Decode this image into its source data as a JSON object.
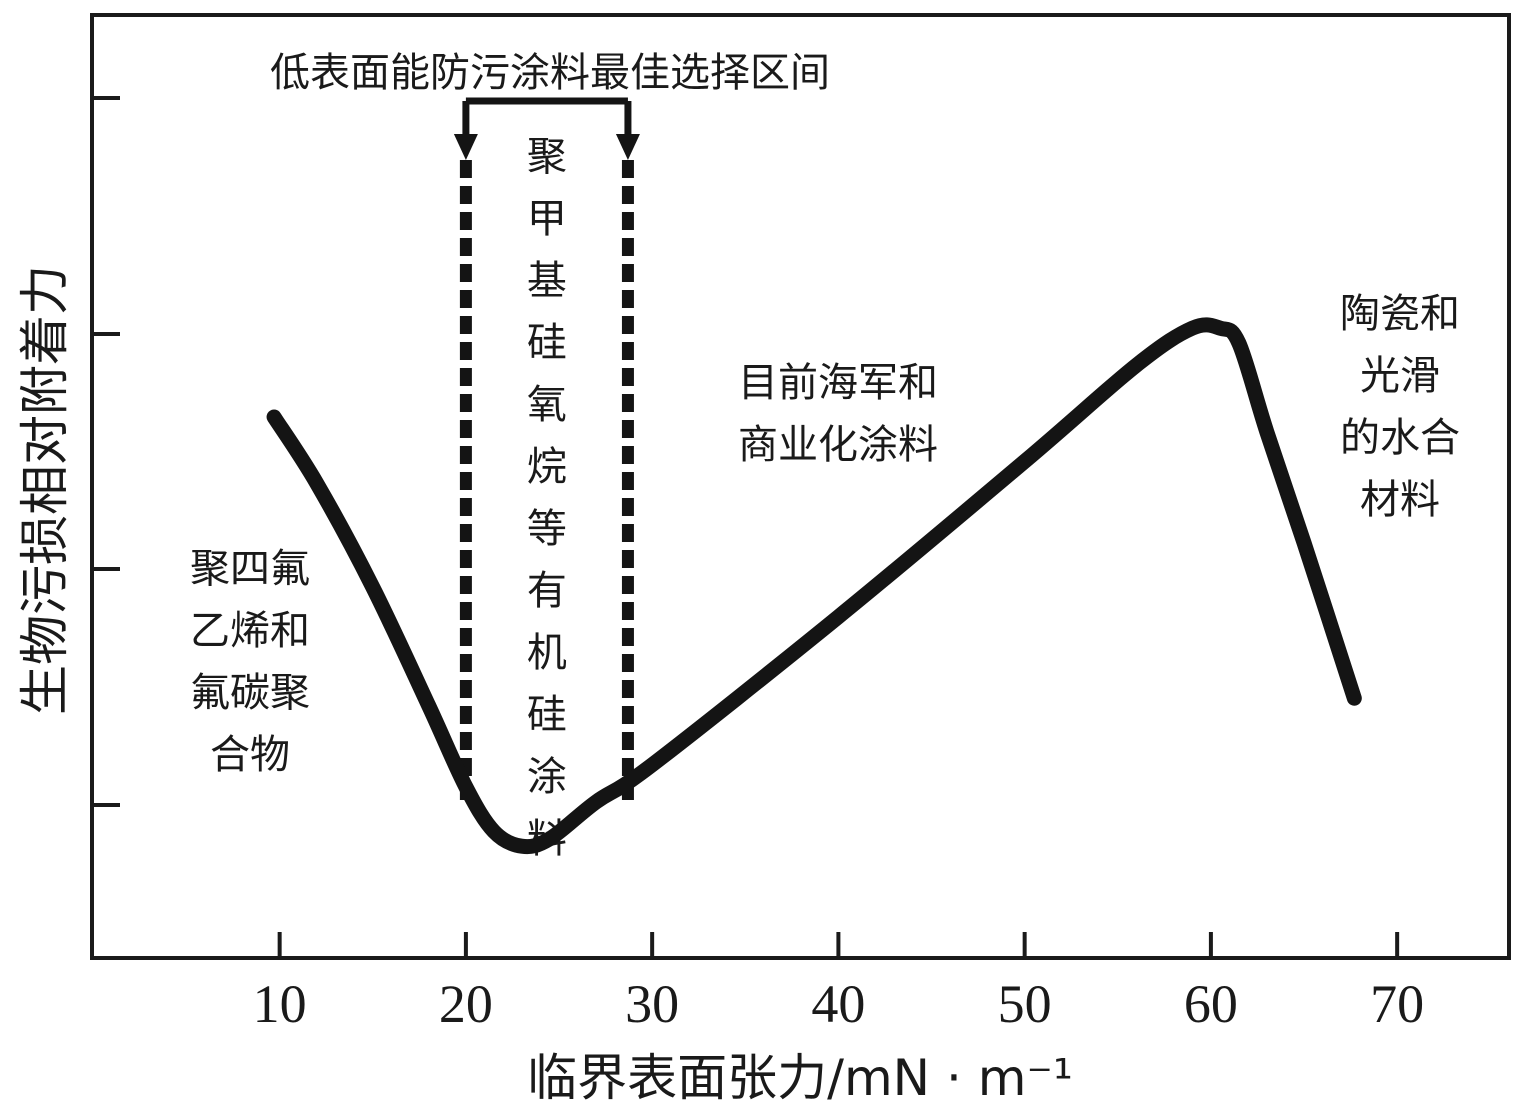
{
  "chart_data": {
    "type": "line",
    "xlabel": "临界表面张力/mN · m⁻¹",
    "ylabel": "生物污损相对附着力",
    "xlim": [
      0,
      76
    ],
    "x_ticks": [
      10,
      20,
      30,
      40,
      50,
      60,
      70
    ],
    "ylim": [
      0,
      1
    ],
    "y_ticks_labeled": false,
    "grid": false,
    "series": [
      {
        "points": [
          [
            9.7,
            0.65
          ],
          [
            12,
            0.56
          ],
          [
            15,
            0.42
          ],
          [
            18,
            0.26
          ],
          [
            20,
            0.15
          ],
          [
            21.5,
            0.09
          ],
          [
            23,
            0.07
          ],
          [
            24.5,
            0.08
          ],
          [
            27,
            0.13
          ],
          [
            30,
            0.18
          ],
          [
            40,
            0.38
          ],
          [
            50,
            0.59
          ],
          [
            56,
            0.72
          ],
          [
            59,
            0.77
          ],
          [
            60.5,
            0.77
          ],
          [
            61.5,
            0.75
          ],
          [
            63,
            0.63
          ],
          [
            65,
            0.48
          ],
          [
            67.7,
            0.27
          ]
        ]
      }
    ],
    "optimal_range": {
      "x_start": 20,
      "x_end": 28.7,
      "label": "低表面能防污涂料最佳选择区间",
      "inner_label": "聚甲基硅氧烷等有机硅涂料"
    },
    "annotations": {
      "ptfe_lines": [
        "聚四氟",
        "乙烯和",
        "氟碳聚",
        "合物"
      ],
      "navy_lines": [
        "目前海军和",
        "商业化涂料"
      ],
      "ceramic_lines": [
        "陶瓷和",
        "光滑",
        "的水合",
        "材料"
      ]
    }
  }
}
